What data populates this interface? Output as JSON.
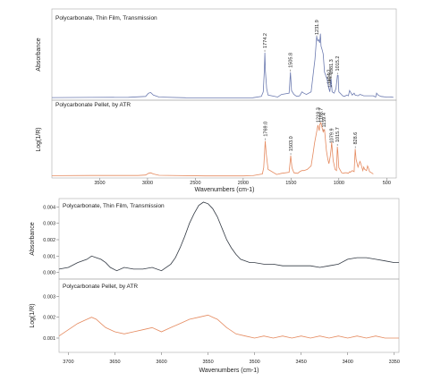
{
  "chart_data": [
    {
      "type": "line",
      "x_reversed": true,
      "xlim": [
        4000,
        400
      ],
      "xlabel": "Wavenumbers (cm-1)",
      "xticks": [
        3500,
        3000,
        2500,
        2000,
        1500,
        1000,
        500
      ],
      "panels": [
        {
          "label": "Polycarbonate, Thin Film, Transmission",
          "ylabel": "Absorbance",
          "color": "#6d7bb0",
          "x": [
            4000,
            3600,
            3200,
            3020,
            2990,
            2968,
            2940,
            2880,
            2600,
            2200,
            1900,
            1810,
            1790,
            1780,
            1774,
            1768,
            1755,
            1740,
            1640,
            1600,
            1520,
            1506,
            1495,
            1470,
            1440,
            1410,
            1386,
            1366,
            1340,
            1290,
            1262,
            1250,
            1240,
            1232,
            1222,
            1212,
            1200,
            1193,
            1186,
            1176,
            1164,
            1150,
            1125,
            1104,
            1095,
            1081,
            1070,
            1050,
            1030,
            1015,
            1008,
            1000,
            960,
            940,
            920,
            900,
            888,
            860,
            840,
            830,
            800,
            780,
            760,
            740,
            700,
            680,
            640,
            615,
            606,
            590,
            560,
            530,
            500,
            470,
            440,
            430
          ],
          "y": [
            0.012,
            0.015,
            0.016,
            0.03,
            0.08,
            0.09,
            0.05,
            0.02,
            0.01,
            0.008,
            0.01,
            0.03,
            0.1,
            0.4,
            0.7,
            0.42,
            0.15,
            0.05,
            0.02,
            0.06,
            0.08,
            0.4,
            0.12,
            0.06,
            0.03,
            0.04,
            0.1,
            0.08,
            0.06,
            0.1,
            0.45,
            0.6,
            0.8,
            0.95,
            0.88,
            0.9,
            0.85,
            0.99,
            0.8,
            0.75,
            0.68,
            0.4,
            0.3,
            0.15,
            0.1,
            0.3,
            0.1,
            0.08,
            0.15,
            0.35,
            0.35,
            0.1,
            0.04,
            0.03,
            0.05,
            0.04,
            0.12,
            0.05,
            0.08,
            0.05,
            0.04,
            0.06,
            0.05,
            0.04,
            0.04,
            0.04,
            0.04,
            0.02,
            0.08,
            0.05,
            0.03,
            0.025,
            0.02,
            0.02,
            0.018,
            0.015
          ],
          "ylim": [
            0,
            1.15
          ],
          "peaks": [
            {
              "x": 1774.2,
              "label": "1774.2"
            },
            {
              "x": 1505.8,
              "label": "1505.8"
            },
            {
              "x": 1231.9,
              "label": "1231.9"
            },
            {
              "x": 1104.2,
              "label": "1104.2"
            },
            {
              "x": 1081.3,
              "label": "1081.3"
            },
            {
              "x": 1015.2,
              "label": "1015.2"
            },
            {
              "x": 1096.2,
              "label": "1096.2"
            }
          ]
        },
        {
          "label": "Polycarbonate Pellet, by ATR",
          "ylabel": "Log(1/R)",
          "color": "#e58a5f",
          "x": [
            4000,
            3600,
            3100,
            3020,
            2990,
            2968,
            2940,
            2880,
            2400,
            2000,
            1900,
            1800,
            1786,
            1770,
            1760,
            1740,
            1650,
            1600,
            1520,
            1503,
            1490,
            1470,
            1430,
            1408,
            1386,
            1364,
            1330,
            1290,
            1270,
            1255,
            1219,
            1205,
            1198,
            1187,
            1175,
            1164,
            1150,
            1130,
            1115,
            1104,
            1090,
            1080,
            1075,
            1060,
            1040,
            1025,
            1016,
            1012,
            1000,
            970,
            950,
            940,
            920,
            900,
            887,
            880,
            860,
            840,
            829,
            820,
            800,
            780,
            770,
            750,
            740,
            730,
            710,
            700,
            690,
            680,
            650,
            640
          ],
          "y": [
            0.01,
            0.012,
            0.012,
            0.02,
            0.05,
            0.06,
            0.04,
            0.015,
            0.005,
            0.005,
            0.01,
            0.04,
            0.15,
            0.62,
            0.4,
            0.12,
            0.03,
            0.05,
            0.07,
            0.36,
            0.15,
            0.06,
            0.05,
            0.08,
            0.1,
            0.1,
            0.12,
            0.18,
            0.4,
            0.58,
            0.9,
            0.8,
            0.92,
            0.94,
            0.85,
            0.78,
            0.82,
            0.45,
            0.3,
            0.22,
            0.35,
            0.5,
            0.6,
            0.28,
            0.12,
            0.1,
            0.52,
            0.45,
            0.15,
            0.06,
            0.05,
            0.06,
            0.06,
            0.05,
            0.08,
            0.07,
            0.1,
            0.08,
            0.48,
            0.3,
            0.16,
            0.26,
            0.22,
            0.1,
            0.16,
            0.12,
            0.1,
            0.18,
            0.14,
            0.08,
            0.05,
            0.04
          ],
          "ylim": [
            0,
            1.15
          ],
          "peaks": [
            {
              "x": 1769.0,
              "label": "1769.0"
            },
            {
              "x": 1503.0,
              "label": "1503.0"
            },
            {
              "x": 1219.3,
              "label": "1219.3"
            },
            {
              "x": 1188.7,
              "label": "1188.7"
            },
            {
              "x": 1159.4,
              "label": "1159.4"
            },
            {
              "x": 1079.9,
              "label": "1079.9"
            },
            {
              "x": 1015.7,
              "label": "1015.7"
            },
            {
              "x": 828.6,
              "label": "828.6"
            }
          ]
        }
      ]
    },
    {
      "type": "line",
      "x_reversed": true,
      "xlim": [
        3710,
        3345
      ],
      "xlabel": "Wavenumbers (cm-1)",
      "xticks": [
        3700,
        3650,
        3600,
        3550,
        3500,
        3450,
        3400,
        3350
      ],
      "panels": [
        {
          "label": "Polycarbonate, Thin Film, Transmission",
          "ylabel": "Absorbance",
          "color": "#333a44",
          "yticks": [
            "0.004",
            "0.003",
            "0.002",
            "0.001",
            "0.000"
          ],
          "ylim": [
            -0.0003,
            0.0043
          ],
          "x": [
            3710,
            3700,
            3690,
            3680,
            3675,
            3670,
            3665,
            3660,
            3655,
            3648,
            3640,
            3630,
            3620,
            3610,
            3600,
            3590,
            3585,
            3580,
            3575,
            3570,
            3565,
            3560,
            3555,
            3550,
            3545,
            3540,
            3535,
            3530,
            3525,
            3520,
            3515,
            3510,
            3505,
            3500,
            3490,
            3480,
            3470,
            3460,
            3450,
            3440,
            3430,
            3420,
            3410,
            3400,
            3390,
            3380,
            3370,
            3360,
            3350,
            3345
          ],
          "y": [
            0.0002,
            0.0003,
            0.0006,
            0.0008,
            0.001,
            0.0009,
            0.0008,
            0.0006,
            0.0003,
            0.0001,
            0.0003,
            0.0002,
            0.0002,
            0.0003,
            0.0001,
            0.0005,
            0.0009,
            0.0015,
            0.0022,
            0.003,
            0.0036,
            0.0041,
            0.0043,
            0.0042,
            0.0039,
            0.0034,
            0.0027,
            0.002,
            0.0015,
            0.0011,
            0.0008,
            0.0007,
            0.0006,
            0.0006,
            0.0005,
            0.0005,
            0.0004,
            0.0004,
            0.0004,
            0.0004,
            0.0003,
            0.0004,
            0.0005,
            0.0008,
            0.0009,
            0.0009,
            0.0008,
            0.0007,
            0.0006,
            0.0006
          ]
        },
        {
          "label": "Polycarbonate Pellet, by ATR",
          "ylabel": "Log(1/R)",
          "color": "#e58a5f",
          "yticks": [
            "0.003",
            "0.002",
            "0.001"
          ],
          "ylim": [
            0.0004,
            0.0034
          ],
          "x": [
            3710,
            3700,
            3690,
            3680,
            3675,
            3670,
            3665,
            3660,
            3650,
            3640,
            3630,
            3620,
            3610,
            3600,
            3590,
            3580,
            3570,
            3560,
            3550,
            3545,
            3540,
            3530,
            3520,
            3510,
            3500,
            3490,
            3480,
            3470,
            3460,
            3450,
            3440,
            3430,
            3420,
            3410,
            3400,
            3390,
            3380,
            3370,
            3360,
            3350,
            3345
          ],
          "y": [
            0.0011,
            0.0014,
            0.0017,
            0.0019,
            0.002,
            0.0019,
            0.0017,
            0.0015,
            0.0013,
            0.0012,
            0.0013,
            0.0014,
            0.0015,
            0.0013,
            0.0015,
            0.0017,
            0.0019,
            0.002,
            0.0021,
            0.002,
            0.0019,
            0.0015,
            0.0012,
            0.0011,
            0.001,
            0.0011,
            0.001,
            0.0011,
            0.001,
            0.0011,
            0.001,
            0.0011,
            0.001,
            0.0011,
            0.001,
            0.0011,
            0.001,
            0.0011,
            0.001,
            0.001,
            0.001
          ]
        }
      ]
    }
  ]
}
